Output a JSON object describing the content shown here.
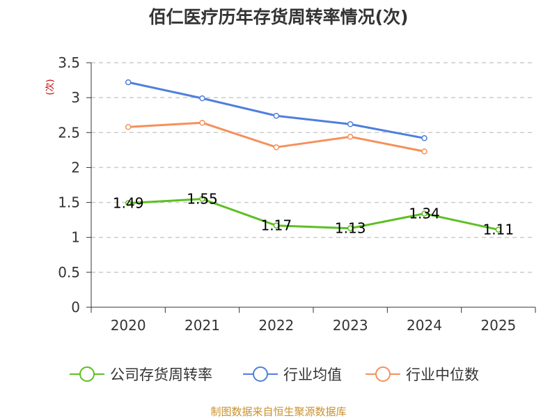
{
  "chart_data": {
    "type": "line",
    "title": "佰仁医疗历年存货周转率情况(次)",
    "ylabel": "(次)",
    "xlabel": "",
    "categories": [
      "2020",
      "2021",
      "2022",
      "2023",
      "2024",
      "2025"
    ],
    "yticks": [
      "0",
      "0.5",
      "1",
      "1.5",
      "2",
      "2.5",
      "3",
      "3.5"
    ],
    "ylim": [
      0,
      3.5
    ],
    "grid": "horizontal-dashed",
    "legend_position": "bottom",
    "series": [
      {
        "name": "公司存货周转率",
        "color": "#5cc021",
        "values": [
          1.49,
          1.55,
          1.17,
          1.13,
          1.34,
          1.11
        ],
        "labels": [
          "1.49",
          "1.55",
          "1.17",
          "1.13",
          "1.34",
          "1.11"
        ]
      },
      {
        "name": "行业均值",
        "color": "#4f7fdc",
        "values": [
          3.22,
          2.99,
          2.74,
          2.62,
          2.42,
          null
        ],
        "labels": []
      },
      {
        "name": "行业中位数",
        "color": "#f5905a",
        "values": [
          2.58,
          2.64,
          2.29,
          2.44,
          2.23,
          null
        ],
        "labels": []
      }
    ],
    "source": "制图数据来自恒生聚源数据库"
  }
}
